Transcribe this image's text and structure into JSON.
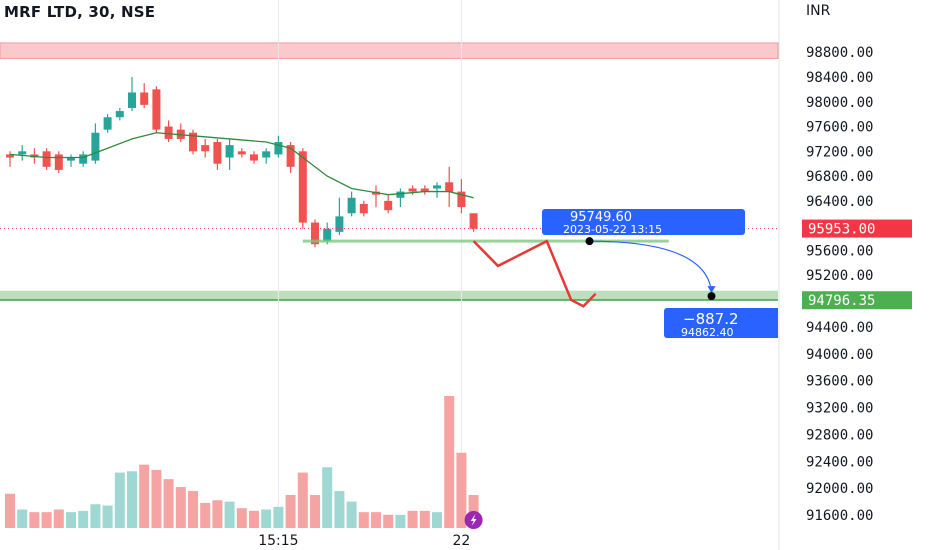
{
  "header": {
    "title": "MRF LTD, 30, NSE",
    "currency": "INR"
  },
  "colors": {
    "up": "#26a69a",
    "down": "#ef5350",
    "volume_up": "#9fd8d2",
    "volume_down": "#f5a3a3",
    "ma_line": "#2e8b3d",
    "resistance_zone": "#f9c9cc",
    "support_zone": "#a5d6a7",
    "projection_arrow": "#e53935",
    "measure_blue": "#2962ff",
    "current_price_label": "#f23645",
    "target_price_label": "#4caf50"
  },
  "chart_data": {
    "type": "candlestick",
    "symbol": "MRF LTD",
    "interval": "30",
    "exchange": "NSE",
    "y_axis": {
      "min": 91400,
      "max": 99400,
      "ticks": [
        "98800.00",
        "98400.00",
        "98000.00",
        "97600.00",
        "97200.00",
        "96800.00",
        "96400.00",
        "95600.00",
        "95200.00",
        "94400.00",
        "94000.00",
        "93600.00",
        "93200.00",
        "92800.00",
        "92400.00",
        "92000.00",
        "91600.00"
      ]
    },
    "x_ticks": [
      {
        "label": "15:15",
        "index": 22
      },
      {
        "label": "22",
        "index": 37
      }
    ],
    "candles": [
      {
        "o": 97150,
        "h": 97200,
        "l": 96950,
        "c": 97100
      },
      {
        "o": 97150,
        "h": 97300,
        "l": 97050,
        "c": 97200
      },
      {
        "o": 97150,
        "h": 97250,
        "l": 97000,
        "c": 97100
      },
      {
        "o": 97200,
        "h": 97250,
        "l": 96900,
        "c": 96950
      },
      {
        "o": 97150,
        "h": 97200,
        "l": 96850,
        "c": 96900
      },
      {
        "o": 97050,
        "h": 97150,
        "l": 96950,
        "c": 97100
      },
      {
        "o": 97000,
        "h": 97200,
        "l": 96950,
        "c": 97150
      },
      {
        "o": 97050,
        "h": 97650,
        "l": 97000,
        "c": 97500
      },
      {
        "o": 97550,
        "h": 97800,
        "l": 97500,
        "c": 97750
      },
      {
        "o": 97750,
        "h": 97900,
        "l": 97700,
        "c": 97850
      },
      {
        "o": 97900,
        "h": 98400,
        "l": 97850,
        "c": 98150
      },
      {
        "o": 98150,
        "h": 98300,
        "l": 97900,
        "c": 97950
      },
      {
        "o": 98200,
        "h": 98250,
        "l": 97500,
        "c": 97550
      },
      {
        "o": 97600,
        "h": 97700,
        "l": 97350,
        "c": 97400
      },
      {
        "o": 97550,
        "h": 97650,
        "l": 97350,
        "c": 97400
      },
      {
        "o": 97500,
        "h": 97550,
        "l": 97150,
        "c": 97200
      },
      {
        "o": 97300,
        "h": 97400,
        "l": 97100,
        "c": 97200
      },
      {
        "o": 97350,
        "h": 97400,
        "l": 96900,
        "c": 97000
      },
      {
        "o": 97100,
        "h": 97400,
        "l": 96900,
        "c": 97300
      },
      {
        "o": 97200,
        "h": 97250,
        "l": 97100,
        "c": 97150
      },
      {
        "o": 97150,
        "h": 97200,
        "l": 97000,
        "c": 97050
      },
      {
        "o": 97100,
        "h": 97250,
        "l": 97000,
        "c": 97200
      },
      {
        "o": 97150,
        "h": 97450,
        "l": 97100,
        "c": 97350
      },
      {
        "o": 97300,
        "h": 97350,
        "l": 96850,
        "c": 96950
      },
      {
        "o": 97200,
        "h": 97250,
        "l": 95950,
        "c": 96050
      },
      {
        "o": 96050,
        "h": 96100,
        "l": 95650,
        "c": 95700
      },
      {
        "o": 95750,
        "h": 96050,
        "l": 95700,
        "c": 95950
      },
      {
        "o": 95900,
        "h": 96450,
        "l": 95850,
        "c": 96150
      },
      {
        "o": 96200,
        "h": 96550,
        "l": 96150,
        "c": 96450
      },
      {
        "o": 96350,
        "h": 96400,
        "l": 96150,
        "c": 96200
      },
      {
        "o": 96550,
        "h": 96650,
        "l": 96300,
        "c": 96500
      },
      {
        "o": 96400,
        "h": 96500,
        "l": 96200,
        "c": 96250
      },
      {
        "o": 96450,
        "h": 96600,
        "l": 96300,
        "c": 96550
      },
      {
        "o": 96600,
        "h": 96650,
        "l": 96500,
        "c": 96550
      },
      {
        "o": 96600,
        "h": 96650,
        "l": 96500,
        "c": 96550
      },
      {
        "o": 96600,
        "h": 96700,
        "l": 96450,
        "c": 96650
      },
      {
        "o": 96700,
        "h": 96950,
        "l": 96300,
        "c": 96550
      },
      {
        "o": 96550,
        "h": 96750,
        "l": 96200,
        "c": 96300
      },
      {
        "o": 96200,
        "h": 96200,
        "l": 95900,
        "c": 95950
      }
    ],
    "moving_average": [
      [
        0,
        97150
      ],
      [
        3,
        97100
      ],
      [
        6,
        97100
      ],
      [
        8,
        97250
      ],
      [
        10,
        97400
      ],
      [
        12,
        97500
      ],
      [
        15,
        97450
      ],
      [
        18,
        97400
      ],
      [
        21,
        97350
      ],
      [
        23,
        97250
      ],
      [
        24,
        97100
      ],
      [
        26,
        96800
      ],
      [
        28,
        96600
      ],
      [
        31,
        96500
      ],
      [
        34,
        96550
      ],
      [
        36,
        96550
      ],
      [
        37,
        96500
      ],
      [
        38,
        96450
      ]
    ],
    "volumes": [
      26,
      14,
      12,
      12,
      14,
      12,
      13,
      18,
      17,
      42,
      43,
      48,
      44,
      37,
      31,
      28,
      19,
      21,
      20,
      15,
      13,
      14,
      16,
      25,
      42,
      25,
      46,
      28,
      20,
      12,
      12,
      10,
      10,
      13,
      13,
      12,
      100,
      57,
      25
    ],
    "volume_max": 100,
    "resistance_zone": [
      98950,
      98700
    ],
    "support_zone": [
      94950,
      94800
    ],
    "current_price": "95953.00",
    "target_price": "94796.35",
    "measure_start": {
      "price": "95749.60",
      "date": "2023-05-22 13:15"
    },
    "measure_end": {
      "change": "−887.2",
      "price": "94862.40"
    },
    "projection_path": [
      [
        38,
        95750
      ],
      [
        40,
        95350
      ],
      [
        44,
        95750
      ],
      [
        46,
        94800
      ],
      [
        47,
        94700
      ],
      [
        48,
        94900
      ]
    ]
  }
}
